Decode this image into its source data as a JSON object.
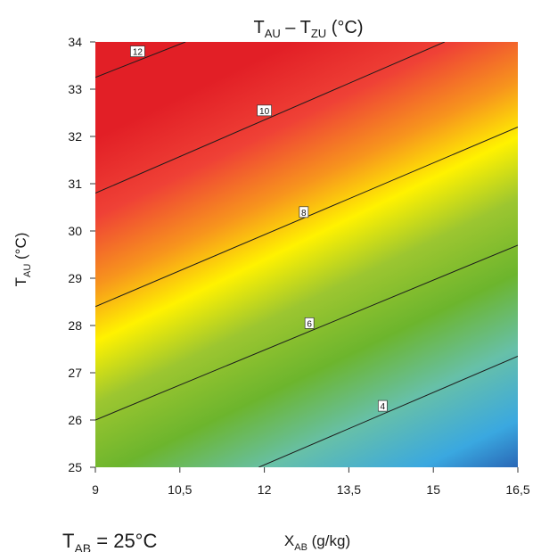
{
  "chart_data": {
    "type": "heatmap",
    "title": {
      "main_start": "T",
      "sub1": "AU",
      "middle": " – T",
      "sub2": "ZU",
      "end": " (°C)"
    },
    "xlabel": {
      "main": "X",
      "sub": "AB",
      "unit": " (g/kg)"
    },
    "ylabel": {
      "main": "T",
      "sub": "AU",
      "unit": " (°C)"
    },
    "annotation": {
      "main": "T",
      "sub": "AB",
      "rest": " = 25°C"
    },
    "xlim": [
      9,
      16.5
    ],
    "ylim": [
      25,
      34
    ],
    "x_ticks": [
      9,
      10.5,
      12,
      13.5,
      15,
      16.5
    ],
    "x_tick_labels": [
      "9",
      "10,5",
      "12",
      "13,5",
      "15",
      "16,5"
    ],
    "y_ticks": [
      25,
      26,
      27,
      28,
      29,
      30,
      31,
      32,
      33,
      34
    ],
    "y_tick_labels": [
      "25",
      "26",
      "27",
      "28",
      "29",
      "30",
      "31",
      "32",
      "33",
      "34"
    ],
    "contours": [
      {
        "level": 4,
        "label": "4",
        "points": [
          [
            11.9,
            25.0
          ],
          [
            16.5,
            27.35
          ]
        ],
        "label_at": [
          14.1,
          26.3
        ]
      },
      {
        "level": 6,
        "label": "6",
        "points": [
          [
            9.0,
            26.0
          ],
          [
            16.5,
            29.7
          ]
        ],
        "label_at": [
          12.8,
          28.05
        ]
      },
      {
        "level": 8,
        "label": "8",
        "points": [
          [
            9.0,
            28.4
          ],
          [
            16.5,
            32.2
          ]
        ],
        "label_at": [
          12.7,
          30.4
        ]
      },
      {
        "level": 10,
        "label": "10",
        "points": [
          [
            9.0,
            30.8
          ],
          [
            15.2,
            34.0
          ]
        ],
        "label_at": [
          12.0,
          32.55
        ]
      },
      {
        "level": 12,
        "label": "12",
        "points": [
          [
            9.0,
            33.25
          ],
          [
            10.6,
            34.0
          ]
        ],
        "label_at": [
          9.75,
          33.8
        ]
      }
    ],
    "colorscale": [
      "#1e3a99",
      "#3aa8e0",
      "#67c0a8",
      "#6cb52d",
      "#9cc630",
      "#fff200",
      "#f7941d",
      "#ef4136",
      "#e21f26"
    ],
    "grid": false,
    "legend": "none"
  }
}
